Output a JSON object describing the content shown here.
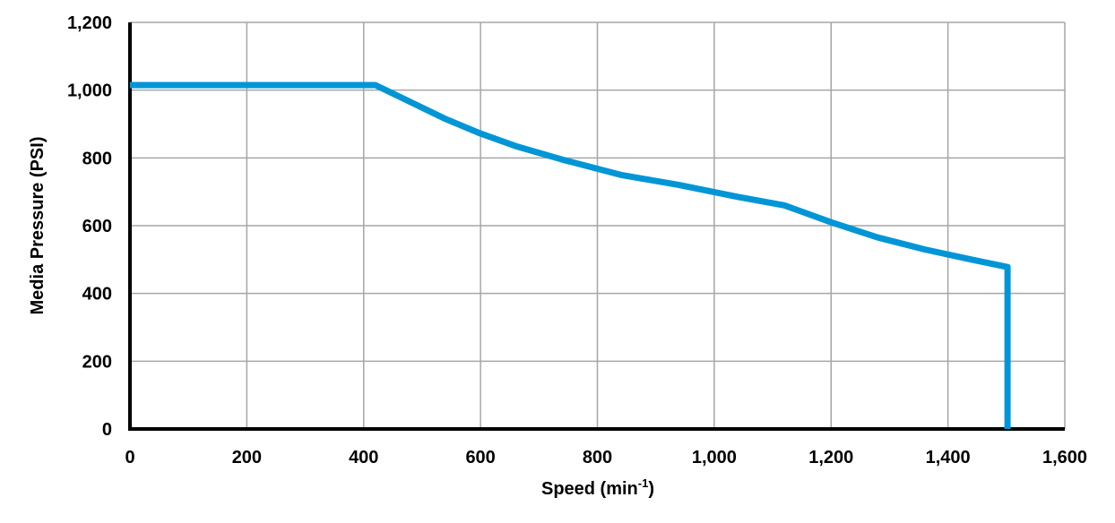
{
  "chart_data": {
    "type": "line",
    "title": "",
    "xlabel": "Speed (min-1)",
    "xlabel_main": "Speed (min",
    "xlabel_sup": "-1",
    "xlabel_close": ")",
    "ylabel": "Media Pressure (PSI)",
    "xlim": [
      0,
      1600
    ],
    "ylim": [
      0,
      1200
    ],
    "x_ticks": [
      0,
      200,
      400,
      600,
      800,
      1000,
      1200,
      1400,
      1600
    ],
    "x_tick_labels": [
      "0",
      "200",
      "400",
      "600",
      "800",
      "1,000",
      "1,200",
      "1,400",
      "1,600"
    ],
    "y_ticks": [
      0,
      200,
      400,
      600,
      800,
      1000,
      1200
    ],
    "y_tick_labels": [
      "0",
      "200",
      "400",
      "600",
      "800",
      "1,000",
      "1,200"
    ],
    "grid": true,
    "legend": null,
    "series": [
      {
        "name": "Media Pressure",
        "color": "#0096D6",
        "x": [
          0,
          420,
          480,
          540,
          600,
          660,
          740,
          840,
          940,
          1040,
          1120,
          1200,
          1280,
          1360,
          1440,
          1502,
          1502
        ],
        "y": [
          1015,
          1015,
          965,
          915,
          872,
          835,
          795,
          750,
          720,
          685,
          660,
          610,
          565,
          530,
          500,
          478,
          0
        ]
      }
    ]
  }
}
